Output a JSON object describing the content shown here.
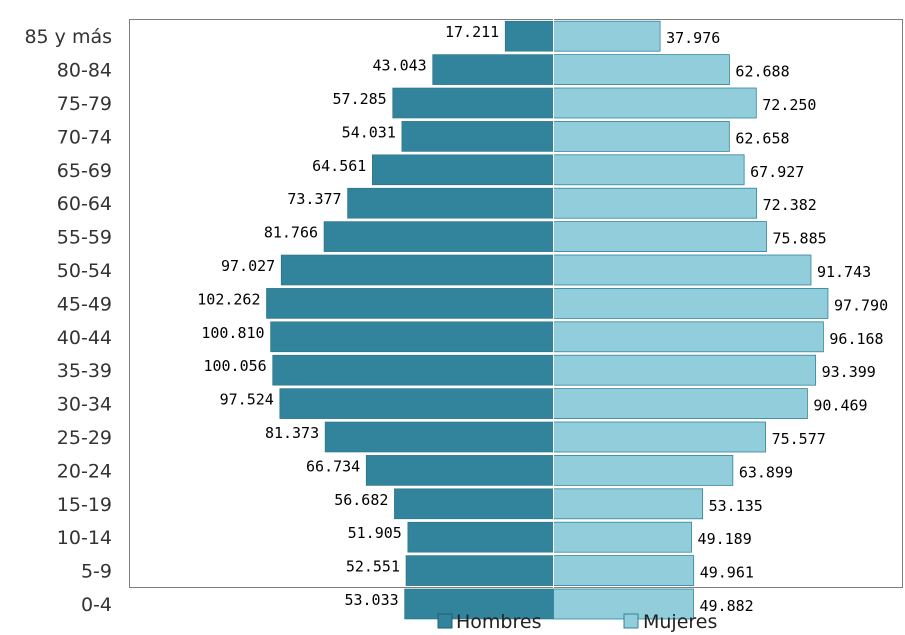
{
  "chart_data": {
    "type": "bar",
    "orientation": "horizontal",
    "subtype": "population-pyramid",
    "categories": [
      "85 y más",
      "80-84",
      "75-79",
      "70-74",
      "65-69",
      "60-64",
      "55-59",
      "50-54",
      "45-49",
      "40-44",
      "35-39",
      "30-34",
      "25-29",
      "20-24",
      "15-19",
      "10-14",
      "5-9",
      "0-4"
    ],
    "series": [
      {
        "name": "Hombres",
        "color": "#31849b",
        "values": [
          17211,
          43043,
          57285,
          54031,
          64561,
          73377,
          81766,
          97027,
          102262,
          100810,
          100056,
          97524,
          81373,
          66734,
          56682,
          51905,
          52551,
          53033
        ],
        "labels": [
          "17.211",
          "43.043",
          "57.285",
          "54.031",
          "64.561",
          "73.377",
          "81.766",
          "97.027",
          "102.262",
          "100.810",
          "100.056",
          "97.524",
          "81.373",
          "66.734",
          "56.682",
          "51.905",
          "52.551",
          "53.033"
        ]
      },
      {
        "name": "Mujeres",
        "color": "#92cddc",
        "values": [
          37976,
          62688,
          72250,
          62658,
          67927,
          72382,
          75885,
          91743,
          97790,
          96168,
          93399,
          90469,
          75577,
          63899,
          53135,
          49189,
          49961,
          49882
        ],
        "labels": [
          "37.976",
          "62.688",
          "72.250",
          "62.658",
          "67.927",
          "72.382",
          "75.885",
          "91.743",
          "97.790",
          "96.168",
          "93.399",
          "90.469",
          "75.577",
          "63.899",
          "53.135",
          "49.189",
          "49.961",
          "49.882"
        ]
      }
    ],
    "xlim": [
      -109000,
      109000
    ],
    "legend_position": "bottom",
    "grid": false
  },
  "legend": {
    "hombres": "Hombres",
    "mujeres": "Mujeres"
  }
}
